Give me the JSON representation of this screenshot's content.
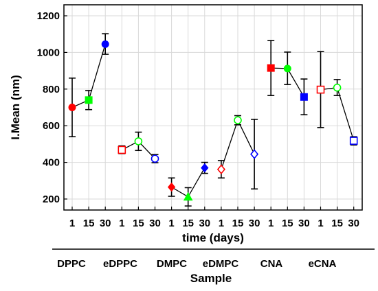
{
  "chart_data": {
    "type": "scatter",
    "xlabel": "time (days)",
    "ylabel": "I.Mean (nm)",
    "xlabel2": "Sample",
    "ylim": [
      140,
      1260
    ],
    "yticks": [
      200,
      400,
      600,
      800,
      1000,
      1200
    ],
    "grid": true,
    "categories": [
      "1",
      "15",
      "30",
      "1",
      "15",
      "30",
      "1",
      "15",
      "30",
      "1",
      "15",
      "30",
      "1",
      "15",
      "30",
      "1",
      "15",
      "30"
    ],
    "groups": [
      {
        "name": "DPPC",
        "points": [
          {
            "x": "1",
            "y": 700,
            "err_lo": 540,
            "err_hi": 860,
            "color": "#ff0000",
            "marker": "circle",
            "filled": true
          },
          {
            "x": "15",
            "y": 740,
            "err_lo": 688,
            "err_hi": 792,
            "color": "#00ff00",
            "marker": "square",
            "filled": true
          },
          {
            "x": "30",
            "y": 1045,
            "err_lo": 990,
            "err_hi": 1102,
            "color": "#0000ff",
            "marker": "circle",
            "filled": true
          }
        ]
      },
      {
        "name": "eDPPC",
        "points": [
          {
            "x": "1",
            "y": 468,
            "err_lo": 448,
            "err_hi": 490,
            "color": "#ff0000",
            "marker": "square",
            "filled": false
          },
          {
            "x": "15",
            "y": 515,
            "err_lo": 465,
            "err_hi": 565,
            "color": "#00ff00",
            "marker": "circle",
            "filled": false
          },
          {
            "x": "30",
            "y": 420,
            "err_lo": 398,
            "err_hi": 443,
            "color": "#0000ff",
            "marker": "circle",
            "filled": false
          }
        ]
      },
      {
        "name": "DMPC",
        "points": [
          {
            "x": "1",
            "y": 265,
            "err_lo": 215,
            "err_hi": 315,
            "color": "#ff0000",
            "marker": "diamond",
            "filled": true
          },
          {
            "x": "15",
            "y": 212,
            "err_lo": 162,
            "err_hi": 262,
            "color": "#00ff00",
            "marker": "triangle",
            "filled": true
          },
          {
            "x": "30",
            "y": 370,
            "err_lo": 340,
            "err_hi": 400,
            "color": "#0000ff",
            "marker": "diamond",
            "filled": true
          }
        ]
      },
      {
        "name": "eDMPC",
        "points": [
          {
            "x": "1",
            "y": 362,
            "err_lo": 315,
            "err_hi": 410,
            "color": "#ff0000",
            "marker": "diamond",
            "filled": false
          },
          {
            "x": "15",
            "y": 630,
            "err_lo": 605,
            "err_hi": 655,
            "color": "#00ff00",
            "marker": "circle",
            "filled": false
          },
          {
            "x": "30",
            "y": 445,
            "err_lo": 255,
            "err_hi": 635,
            "color": "#0000ff",
            "marker": "diamond",
            "filled": false
          }
        ]
      },
      {
        "name": "CNA",
        "points": [
          {
            "x": "1",
            "y": 915,
            "err_lo": 765,
            "err_hi": 1065,
            "color": "#ff0000",
            "marker": "square",
            "filled": true
          },
          {
            "x": "15",
            "y": 912,
            "err_lo": 825,
            "err_hi": 1002,
            "color": "#00ff00",
            "marker": "circle",
            "filled": true
          },
          {
            "x": "30",
            "y": 757,
            "err_lo": 660,
            "err_hi": 855,
            "color": "#0000ff",
            "marker": "square",
            "filled": true
          }
        ]
      },
      {
        "name": "eCNA",
        "points": [
          {
            "x": "1",
            "y": 797,
            "err_lo": 590,
            "err_hi": 1005,
            "color": "#ff0000",
            "marker": "square",
            "filled": false
          },
          {
            "x": "15",
            "y": 808,
            "err_lo": 765,
            "err_hi": 852,
            "color": "#00ff00",
            "marker": "circle",
            "filled": false
          },
          {
            "x": "30",
            "y": 518,
            "err_lo": 495,
            "err_hi": 540,
            "color": "#0000ff",
            "marker": "square",
            "filled": false
          }
        ]
      }
    ]
  }
}
